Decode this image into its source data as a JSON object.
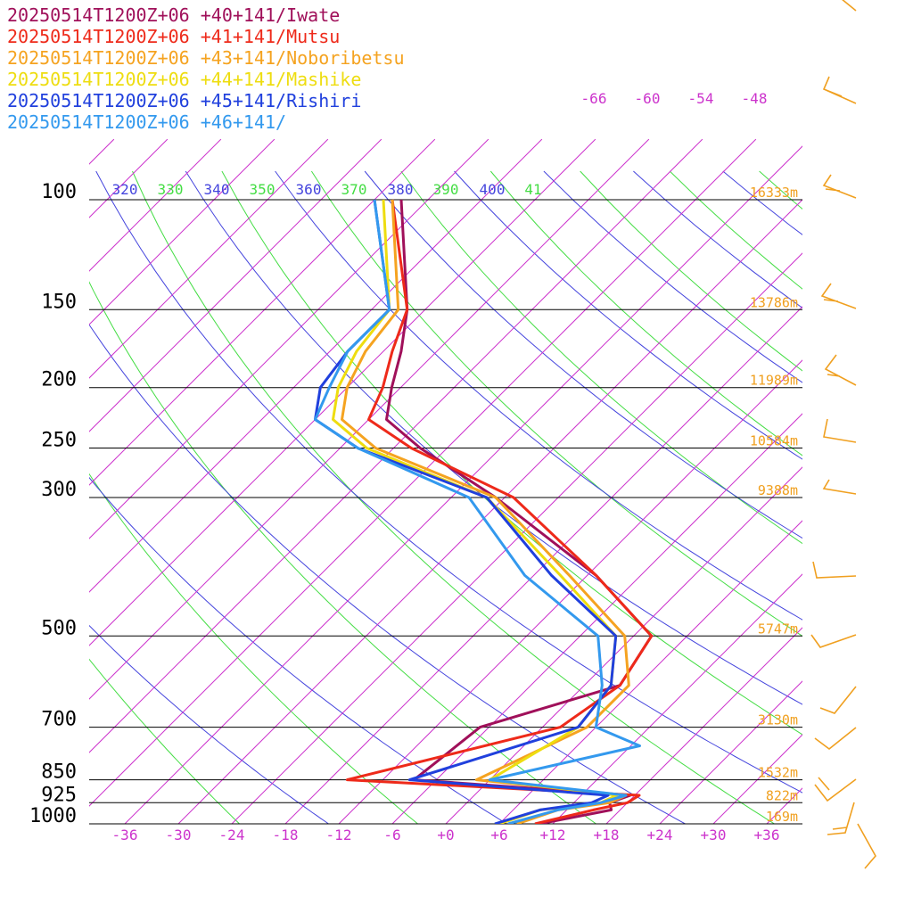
{
  "colors": {
    "isobar": "#000000",
    "isotherm": "#cc33cc",
    "theta": "#4444dd",
    "theta_e": "#44dd44",
    "height_label": "#f0a020",
    "wind_barb": "#f0a020"
  },
  "legend": [
    {
      "label": "20250514T1200Z+06 +40+141/Iwate",
      "color": "#a0105a"
    },
    {
      "label": "20250514T1200Z+06 +41+141/Mutsu",
      "color": "#ee2a1a"
    },
    {
      "label": "20250514T1200Z+06 +43+141/Noboribetsu",
      "color": "#f5a320"
    },
    {
      "label": "20250514T1200Z+06 +44+141/Mashike",
      "color": "#eedd10"
    },
    {
      "label": "20250514T1200Z+06 +45+141/Rishiri",
      "color": "#2040dd"
    },
    {
      "label": "20250514T1200Z+06 +46+141/",
      "color": "#3399ee"
    }
  ],
  "chart_data": {
    "type": "line",
    "title": "",
    "xlabel": "",
    "ylabel": "",
    "x_axis": {
      "quantity": "temperature",
      "unit": "°C",
      "range": [
        -40,
        40
      ],
      "ticks": [
        -36,
        -30,
        -24,
        -18,
        -12,
        -6,
        0,
        6,
        12,
        18,
        24,
        30,
        36
      ],
      "tick_labels": [
        "-36",
        "-30",
        "-24",
        "-18",
        "-12",
        "-6",
        "+0",
        "+6",
        "+12",
        "+18",
        "+24",
        "+30",
        "+36"
      ]
    },
    "y_axis": {
      "quantity": "pressure",
      "unit": "hPa",
      "scale": "log",
      "range": [
        1000,
        100
      ],
      "ticks": [
        1000,
        925,
        850,
        700,
        500,
        300,
        250,
        200,
        150,
        100
      ]
    },
    "isobar_heights": [
      {
        "p": 100,
        "label": "16333m"
      },
      {
        "p": 150,
        "label": "13786m"
      },
      {
        "p": 200,
        "label": "11989m"
      },
      {
        "p": 250,
        "label": "10584m"
      },
      {
        "p": 300,
        "label": "9388m"
      },
      {
        "p": 500,
        "label": "5747m"
      },
      {
        "p": 700,
        "label": "3130m"
      },
      {
        "p": 850,
        "label": "1532m"
      },
      {
        "p": 925,
        "label": "822m"
      },
      {
        "p": 1000,
        "label": "169m"
      }
    ],
    "top_isotherm_labels": [
      "-66",
      "-60",
      "-54",
      "-48"
    ],
    "theta_labels": [
      "320",
      "340",
      "360",
      "380",
      "400"
    ],
    "theta_e_labels": [
      "330",
      "350",
      "370",
      "390",
      "41"
    ],
    "series": [
      {
        "name": "20250514T1200Z+06 +40+141/Iwate",
        "color": "#a0105a",
        "points": [
          [
            1000,
            10.5
          ],
          [
            950,
            17
          ],
          [
            925,
            16
          ],
          [
            900,
            17.5
          ],
          [
            850,
            -8.5
          ],
          [
            700,
            -7
          ],
          [
            600,
            4
          ],
          [
            500,
            2
          ],
          [
            400,
            -11
          ],
          [
            300,
            -31
          ],
          [
            250,
            -45
          ],
          [
            225,
            -52
          ],
          [
            200,
            -55
          ],
          [
            175,
            -58
          ],
          [
            150,
            -62
          ],
          [
            100,
            -75
          ]
        ]
      },
      {
        "name": "20250514T1200Z+06 +41+141/Mutsu",
        "color": "#ee2a1a",
        "points": [
          [
            1000,
            10
          ],
          [
            950,
            15
          ],
          [
            925,
            18
          ],
          [
            900,
            18.5
          ],
          [
            850,
            -16
          ],
          [
            700,
            2
          ],
          [
            600,
            4
          ],
          [
            500,
            2
          ],
          [
            400,
            -11
          ],
          [
            300,
            -29
          ],
          [
            250,
            -46
          ],
          [
            225,
            -54
          ],
          [
            200,
            -56
          ],
          [
            175,
            -59
          ],
          [
            150,
            -62
          ],
          [
            100,
            -76
          ]
        ]
      },
      {
        "name": "20250514T1200Z+06 +43+141/Noboribetsu",
        "color": "#f5a320",
        "points": [
          [
            1000,
            8
          ],
          [
            950,
            11
          ],
          [
            925,
            16
          ],
          [
            900,
            17
          ],
          [
            850,
            -1.5
          ],
          [
            700,
            5
          ],
          [
            600,
            5
          ],
          [
            500,
            -1
          ],
          [
            400,
            -14
          ],
          [
            300,
            -31
          ],
          [
            250,
            -50
          ],
          [
            225,
            -57
          ],
          [
            200,
            -60
          ],
          [
            175,
            -62
          ],
          [
            150,
            -63
          ],
          [
            100,
            -76
          ]
        ]
      },
      {
        "name": "20250514T1200Z+06 +44+141/Mashike",
        "color": "#eedd10",
        "points": [
          [
            1000,
            6
          ],
          [
            950,
            9
          ],
          [
            925,
            15
          ],
          [
            900,
            16
          ],
          [
            850,
            0
          ],
          [
            700,
            4
          ],
          [
            600,
            3
          ],
          [
            500,
            -2
          ],
          [
            400,
            -15
          ],
          [
            300,
            -32
          ],
          [
            250,
            -51
          ],
          [
            225,
            -58
          ],
          [
            200,
            -61
          ],
          [
            175,
            -63
          ],
          [
            150,
            -64
          ],
          [
            100,
            -77
          ]
        ]
      },
      {
        "name": "20250514T1200Z+06 +45+141/Rishiri",
        "color": "#2040dd",
        "points": [
          [
            1000,
            5.5
          ],
          [
            950,
            9
          ],
          [
            925,
            14
          ],
          [
            900,
            15
          ],
          [
            850,
            -9
          ],
          [
            700,
            4
          ],
          [
            600,
            3
          ],
          [
            500,
            -2
          ],
          [
            400,
            -16
          ],
          [
            300,
            -32
          ],
          [
            250,
            -52
          ],
          [
            225,
            -60
          ],
          [
            200,
            -63
          ],
          [
            175,
            -64
          ],
          [
            150,
            -64
          ],
          [
            100,
            -78
          ]
        ]
      },
      {
        "name": "20250514T1200Z+06 +46+141/",
        "color": "#3399ee",
        "points": [
          [
            1000,
            7
          ],
          [
            950,
            11
          ],
          [
            925,
            15
          ],
          [
            900,
            17
          ],
          [
            850,
            0
          ],
          [
            750,
            13
          ],
          [
            700,
            6
          ],
          [
            600,
            2
          ],
          [
            500,
            -4
          ],
          [
            400,
            -19
          ],
          [
            300,
            -34
          ],
          [
            250,
            -52
          ],
          [
            225,
            -60
          ],
          [
            200,
            -62
          ],
          [
            175,
            -64
          ],
          [
            150,
            -64
          ],
          [
            100,
            -78
          ]
        ]
      }
    ],
    "grid": true
  }
}
